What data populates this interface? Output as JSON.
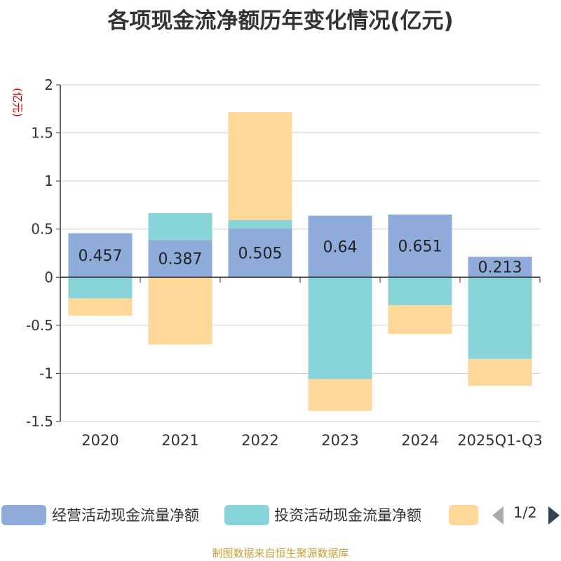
{
  "chart_data": {
    "type": "bar",
    "stacked": true,
    "title": "各项现金流净额历年变化情况(亿元)",
    "ylabel": "(亿元)",
    "xlabel": "",
    "ylim": [
      -1.5,
      2
    ],
    "yticks": [
      2,
      1.5,
      1,
      0.5,
      0,
      -0.5,
      -1,
      -1.5
    ],
    "ytick_labels": [
      "2",
      "1.5",
      "1",
      "0.5",
      "0",
      "-0.5",
      "-1",
      "-1.5"
    ],
    "grid": true,
    "categories": [
      "2020",
      "2021",
      "2022",
      "2023",
      "2024",
      "2025Q1-Q3"
    ],
    "series": [
      {
        "name": "经营活动现金流量净额",
        "color": "#8eabd9",
        "values": [
          0.457,
          0.387,
          0.505,
          0.64,
          0.651,
          0.213
        ],
        "labels": [
          "0.457",
          "0.387",
          "0.505",
          "0.64",
          "0.651",
          "0.213"
        ]
      },
      {
        "name": "投资活动现金流量净额",
        "color": "#87d5d8",
        "values": [
          -0.22,
          0.28,
          0.09,
          -1.06,
          -0.29,
          -0.85
        ]
      },
      {
        "name": "",
        "color": "#ffd899",
        "values": [
          -0.18,
          -0.7,
          1.12,
          -0.33,
          -0.3,
          -0.28
        ]
      }
    ]
  },
  "legend": {
    "items": [
      {
        "label": "经营活动现金流量净额",
        "color": "#8eabd9"
      },
      {
        "label": "投资活动现金流量净额",
        "color": "#87d5d8"
      },
      {
        "label": "",
        "color": "#ffd899"
      }
    ],
    "pager": {
      "text": "1/2",
      "prev_icon": "triangle-left-icon",
      "next_icon": "triangle-right-icon",
      "prev_color": "#aaaaaa",
      "next_color": "#2f4554"
    }
  },
  "source_note": {
    "text": "制图数据来自恒生聚源数据库",
    "color": "#c9a13a"
  },
  "colors": {
    "ylabel": "#cc0000",
    "axis": "#333333",
    "grid": "#cccccc",
    "text": "#333333"
  }
}
